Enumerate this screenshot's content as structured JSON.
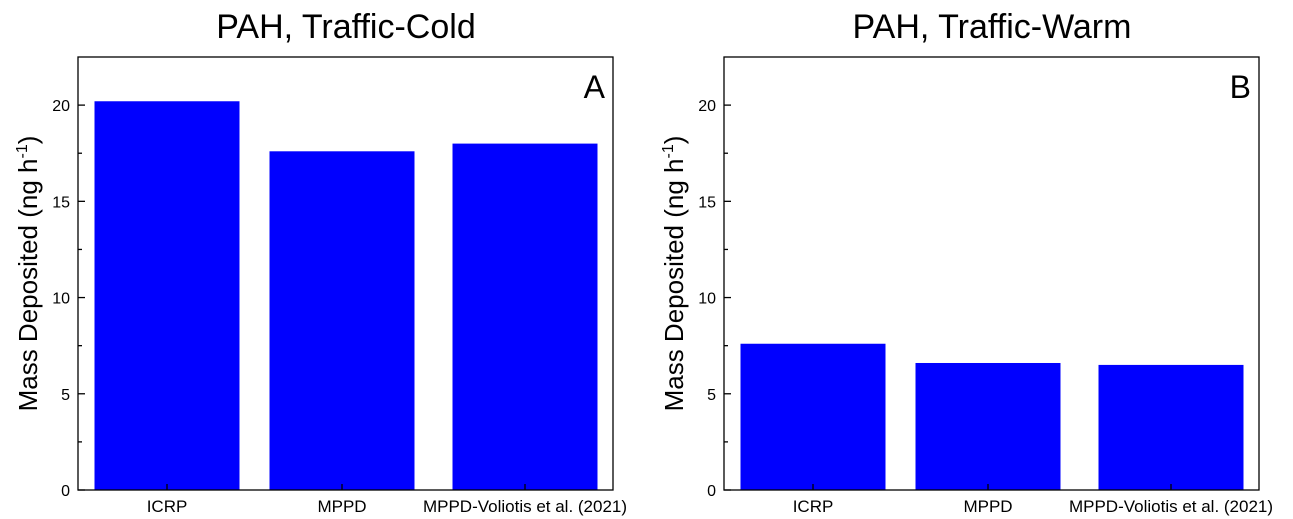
{
  "chart_data": [
    {
      "type": "bar",
      "title": "PAH, Traffic-Cold",
      "panel_label": "A",
      "ylabel": "Mass Deposited (ng h",
      "ylabel_superscript": "-1",
      "ylabel_close": ")",
      "categories": [
        "ICRP",
        "MPPD",
        "MPPD-Voliotis et al. (2021)"
      ],
      "values": [
        20.2,
        17.6,
        18.0
      ],
      "ylim": [
        0,
        22.5
      ],
      "yticks": [
        0,
        5,
        10,
        15,
        20
      ],
      "bar_color": "#0000ff",
      "grid": false
    },
    {
      "type": "bar",
      "title": "PAH, Traffic-Warm",
      "panel_label": "B",
      "ylabel": "Mass Deposited (ng h",
      "ylabel_superscript": "-1",
      "ylabel_close": ")",
      "categories": [
        "ICRP",
        "MPPD",
        "MPPD-Voliotis et al. (2021)"
      ],
      "values": [
        7.6,
        6.6,
        6.5
      ],
      "ylim": [
        0,
        22.5
      ],
      "yticks": [
        0,
        5,
        10,
        15,
        20
      ],
      "bar_color": "#0000ff",
      "grid": false
    }
  ]
}
